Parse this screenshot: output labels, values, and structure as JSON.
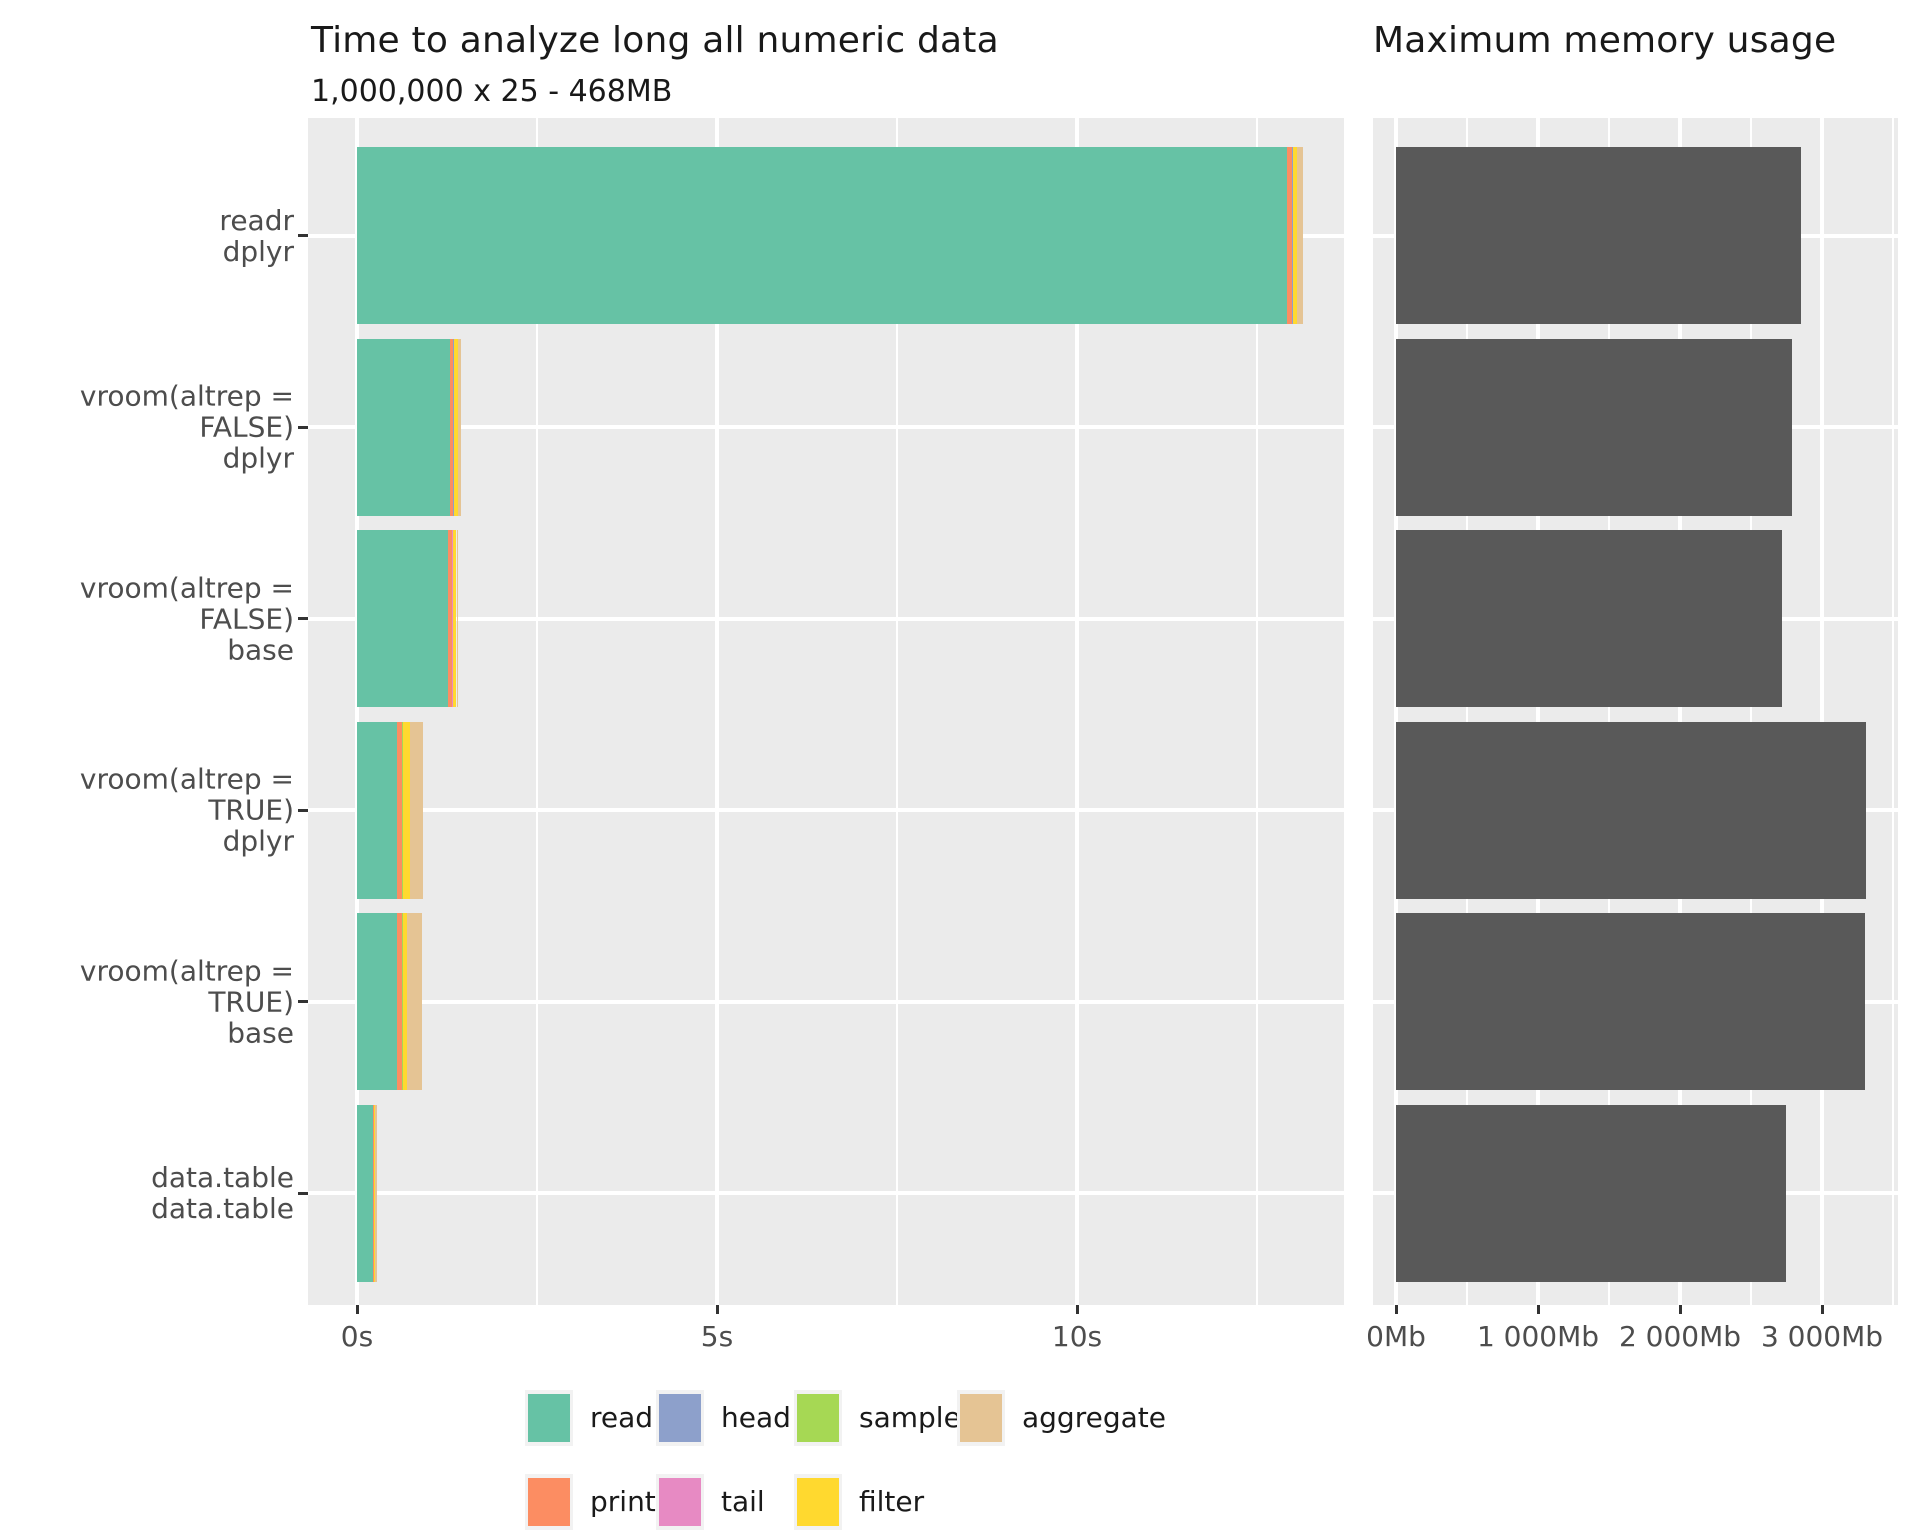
{
  "chart_data": [
    {
      "type": "bar",
      "orientation": "horizontal-stacked",
      "title": "Time to analyze long all numeric data",
      "subtitle": "1,000,000 x 25 - 468MB",
      "categories": [
        [
          "readr",
          "dplyr"
        ],
        [
          "vroom(altrep = FALSE)",
          "dplyr"
        ],
        [
          "vroom(altrep = FALSE)",
          "base"
        ],
        [
          "vroom(altrep = TRUE)",
          "dplyr"
        ],
        [
          "vroom(altrep = TRUE)",
          "base"
        ],
        [
          "data.table",
          "data.table"
        ]
      ],
      "series": [
        {
          "name": "read",
          "color": "#66C2A5",
          "values": [
            12.92,
            1.29,
            1.27,
            0.56,
            0.55,
            0.22
          ]
        },
        {
          "name": "print",
          "color": "#FC8D62",
          "values": [
            0.07,
            0.05,
            0.05,
            0.06,
            0.07,
            0.015
          ]
        },
        {
          "name": "head",
          "color": "#8DA0CB",
          "values": [
            0.004,
            0.004,
            0.004,
            0.004,
            0.004,
            0.002
          ]
        },
        {
          "name": "tail",
          "color": "#E78AC3",
          "values": [
            0.004,
            0.004,
            0.004,
            0.004,
            0.004,
            0.002
          ]
        },
        {
          "name": "sample",
          "color": "#A6D854",
          "values": [
            0.004,
            0.004,
            0.004,
            0.004,
            0.004,
            0.002
          ]
        },
        {
          "name": "filter",
          "color": "#FFD92F",
          "values": [
            0.05,
            0.05,
            0.05,
            0.11,
            0.06,
            0.005
          ]
        },
        {
          "name": "aggregate",
          "color": "#E5C494",
          "values": [
            0.09,
            0.04,
            0.02,
            0.18,
            0.21,
            0.03
          ]
        }
      ],
      "totals_seconds": [
        13.14,
        1.44,
        1.4,
        0.92,
        0.9,
        0.27
      ],
      "xlim": [
        0,
        13.7
      ],
      "x_ticks": [
        {
          "value": 0,
          "label": "0s"
        },
        {
          "value": 5,
          "label": "5s"
        },
        {
          "value": 10,
          "label": "10s"
        }
      ],
      "x_minor_ticks": [
        2.5,
        7.5,
        12.5
      ],
      "grid": "white-on-grey",
      "panel_background": "#EBEBEB"
    },
    {
      "type": "bar",
      "orientation": "horizontal",
      "title": "Maximum memory usage",
      "categories_shared_with_left_panel": true,
      "values_mb": [
        2850,
        2790,
        2720,
        3310,
        3305,
        2745
      ],
      "bar_color": "#595959",
      "xlim": [
        0,
        3535
      ],
      "x_ticks": [
        {
          "value": 0,
          "label": "0Mb"
        },
        {
          "value": 1000,
          "label": "1 000Mb"
        },
        {
          "value": 2000,
          "label": "2 000Mb"
        },
        {
          "value": 3000,
          "label": "3 000Mb"
        }
      ],
      "x_minor_ticks": [
        500,
        1500,
        2500,
        3500
      ],
      "grid": "white-on-grey",
      "panel_background": "#EBEBEB"
    }
  ],
  "legend": {
    "position": "bottom",
    "columns": [
      [
        {
          "label": "read",
          "color": "#66C2A5"
        },
        {
          "label": "print",
          "color": "#FC8D62"
        }
      ],
      [
        {
          "label": "head",
          "color": "#8DA0CB"
        },
        {
          "label": "tail",
          "color": "#E78AC3"
        }
      ],
      [
        {
          "label": "sample",
          "color": "#A6D854"
        },
        {
          "label": "filter",
          "color": "#FFD92F"
        }
      ],
      [
        {
          "label": "aggregate",
          "color": "#E5C494"
        }
      ]
    ],
    "key_background": "#F2F2F2"
  },
  "colors": {
    "panel_background": "#EBEBEB",
    "gridline": "#FFFFFF",
    "memory_bar": "#595959",
    "axis_text": "#4D4D4D",
    "tick_mark": "#333333",
    "title_text": "#191919"
  }
}
